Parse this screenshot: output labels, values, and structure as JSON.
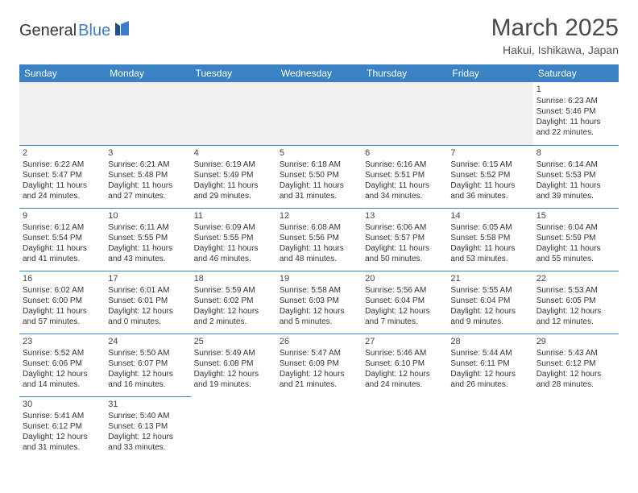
{
  "brand": {
    "part1": "General",
    "part2": "Blue"
  },
  "title": {
    "month": "March 2025",
    "location": "Hakui, Ishikawa, Japan"
  },
  "header_bg": "#3b82c4",
  "border_color": "#3b82c4",
  "weekdays": [
    "Sunday",
    "Monday",
    "Tuesday",
    "Wednesday",
    "Thursday",
    "Friday",
    "Saturday"
  ],
  "weeks": [
    [
      {
        "empty": true
      },
      {
        "empty": true
      },
      {
        "empty": true
      },
      {
        "empty": true
      },
      {
        "empty": true
      },
      {
        "empty": true
      },
      {
        "day": "1",
        "sunrise": "Sunrise: 6:23 AM",
        "sunset": "Sunset: 5:46 PM",
        "daylight": "Daylight: 11 hours and 22 minutes."
      }
    ],
    [
      {
        "day": "2",
        "sunrise": "Sunrise: 6:22 AM",
        "sunset": "Sunset: 5:47 PM",
        "daylight": "Daylight: 11 hours and 24 minutes."
      },
      {
        "day": "3",
        "sunrise": "Sunrise: 6:21 AM",
        "sunset": "Sunset: 5:48 PM",
        "daylight": "Daylight: 11 hours and 27 minutes."
      },
      {
        "day": "4",
        "sunrise": "Sunrise: 6:19 AM",
        "sunset": "Sunset: 5:49 PM",
        "daylight": "Daylight: 11 hours and 29 minutes."
      },
      {
        "day": "5",
        "sunrise": "Sunrise: 6:18 AM",
        "sunset": "Sunset: 5:50 PM",
        "daylight": "Daylight: 11 hours and 31 minutes."
      },
      {
        "day": "6",
        "sunrise": "Sunrise: 6:16 AM",
        "sunset": "Sunset: 5:51 PM",
        "daylight": "Daylight: 11 hours and 34 minutes."
      },
      {
        "day": "7",
        "sunrise": "Sunrise: 6:15 AM",
        "sunset": "Sunset: 5:52 PM",
        "daylight": "Daylight: 11 hours and 36 minutes."
      },
      {
        "day": "8",
        "sunrise": "Sunrise: 6:14 AM",
        "sunset": "Sunset: 5:53 PM",
        "daylight": "Daylight: 11 hours and 39 minutes."
      }
    ],
    [
      {
        "day": "9",
        "sunrise": "Sunrise: 6:12 AM",
        "sunset": "Sunset: 5:54 PM",
        "daylight": "Daylight: 11 hours and 41 minutes."
      },
      {
        "day": "10",
        "sunrise": "Sunrise: 6:11 AM",
        "sunset": "Sunset: 5:55 PM",
        "daylight": "Daylight: 11 hours and 43 minutes."
      },
      {
        "day": "11",
        "sunrise": "Sunrise: 6:09 AM",
        "sunset": "Sunset: 5:55 PM",
        "daylight": "Daylight: 11 hours and 46 minutes."
      },
      {
        "day": "12",
        "sunrise": "Sunrise: 6:08 AM",
        "sunset": "Sunset: 5:56 PM",
        "daylight": "Daylight: 11 hours and 48 minutes."
      },
      {
        "day": "13",
        "sunrise": "Sunrise: 6:06 AM",
        "sunset": "Sunset: 5:57 PM",
        "daylight": "Daylight: 11 hours and 50 minutes."
      },
      {
        "day": "14",
        "sunrise": "Sunrise: 6:05 AM",
        "sunset": "Sunset: 5:58 PM",
        "daylight": "Daylight: 11 hours and 53 minutes."
      },
      {
        "day": "15",
        "sunrise": "Sunrise: 6:04 AM",
        "sunset": "Sunset: 5:59 PM",
        "daylight": "Daylight: 11 hours and 55 minutes."
      }
    ],
    [
      {
        "day": "16",
        "sunrise": "Sunrise: 6:02 AM",
        "sunset": "Sunset: 6:00 PM",
        "daylight": "Daylight: 11 hours and 57 minutes."
      },
      {
        "day": "17",
        "sunrise": "Sunrise: 6:01 AM",
        "sunset": "Sunset: 6:01 PM",
        "daylight": "Daylight: 12 hours and 0 minutes."
      },
      {
        "day": "18",
        "sunrise": "Sunrise: 5:59 AM",
        "sunset": "Sunset: 6:02 PM",
        "daylight": "Daylight: 12 hours and 2 minutes."
      },
      {
        "day": "19",
        "sunrise": "Sunrise: 5:58 AM",
        "sunset": "Sunset: 6:03 PM",
        "daylight": "Daylight: 12 hours and 5 minutes."
      },
      {
        "day": "20",
        "sunrise": "Sunrise: 5:56 AM",
        "sunset": "Sunset: 6:04 PM",
        "daylight": "Daylight: 12 hours and 7 minutes."
      },
      {
        "day": "21",
        "sunrise": "Sunrise: 5:55 AM",
        "sunset": "Sunset: 6:04 PM",
        "daylight": "Daylight: 12 hours and 9 minutes."
      },
      {
        "day": "22",
        "sunrise": "Sunrise: 5:53 AM",
        "sunset": "Sunset: 6:05 PM",
        "daylight": "Daylight: 12 hours and 12 minutes."
      }
    ],
    [
      {
        "day": "23",
        "sunrise": "Sunrise: 5:52 AM",
        "sunset": "Sunset: 6:06 PM",
        "daylight": "Daylight: 12 hours and 14 minutes."
      },
      {
        "day": "24",
        "sunrise": "Sunrise: 5:50 AM",
        "sunset": "Sunset: 6:07 PM",
        "daylight": "Daylight: 12 hours and 16 minutes."
      },
      {
        "day": "25",
        "sunrise": "Sunrise: 5:49 AM",
        "sunset": "Sunset: 6:08 PM",
        "daylight": "Daylight: 12 hours and 19 minutes."
      },
      {
        "day": "26",
        "sunrise": "Sunrise: 5:47 AM",
        "sunset": "Sunset: 6:09 PM",
        "daylight": "Daylight: 12 hours and 21 minutes."
      },
      {
        "day": "27",
        "sunrise": "Sunrise: 5:46 AM",
        "sunset": "Sunset: 6:10 PM",
        "daylight": "Daylight: 12 hours and 24 minutes."
      },
      {
        "day": "28",
        "sunrise": "Sunrise: 5:44 AM",
        "sunset": "Sunset: 6:11 PM",
        "daylight": "Daylight: 12 hours and 26 minutes."
      },
      {
        "day": "29",
        "sunrise": "Sunrise: 5:43 AM",
        "sunset": "Sunset: 6:12 PM",
        "daylight": "Daylight: 12 hours and 28 minutes."
      }
    ],
    [
      {
        "day": "30",
        "sunrise": "Sunrise: 5:41 AM",
        "sunset": "Sunset: 6:12 PM",
        "daylight": "Daylight: 12 hours and 31 minutes."
      },
      {
        "day": "31",
        "sunrise": "Sunrise: 5:40 AM",
        "sunset": "Sunset: 6:13 PM",
        "daylight": "Daylight: 12 hours and 33 minutes."
      },
      {
        "empty": true,
        "noborder": true
      },
      {
        "empty": true,
        "noborder": true
      },
      {
        "empty": true,
        "noborder": true
      },
      {
        "empty": true,
        "noborder": true
      },
      {
        "empty": true,
        "noborder": true
      }
    ]
  ]
}
